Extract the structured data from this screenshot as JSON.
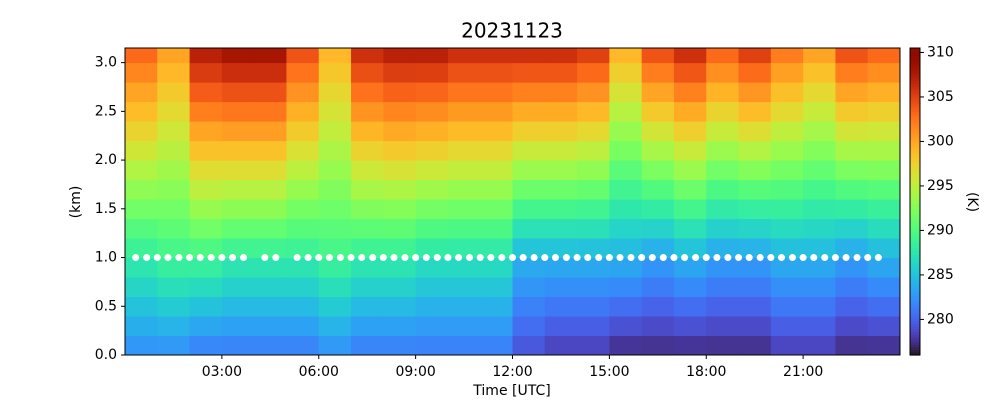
{
  "chart_data": {
    "type": "heatmap",
    "title": "20231123",
    "xlabel": "Time [UTC]",
    "ylabel": "(km)",
    "colorbar_label": "(K)",
    "colormap": "turbo",
    "xlim": [
      0,
      24
    ],
    "ylim": [
      0,
      3.15
    ],
    "zlim": [
      276,
      310.5
    ],
    "xticks": [
      {
        "value": 3,
        "label": "03:00"
      },
      {
        "value": 6,
        "label": "06:00"
      },
      {
        "value": 9,
        "label": "09:00"
      },
      {
        "value": 12,
        "label": "12:00"
      },
      {
        "value": 15,
        "label": "15:00"
      },
      {
        "value": 18,
        "label": "18:00"
      },
      {
        "value": 21,
        "label": "21:00"
      }
    ],
    "yticks": [
      {
        "value": 0,
        "label": "0.0"
      },
      {
        "value": 0.5,
        "label": "0.5"
      },
      {
        "value": 1,
        "label": "1.0"
      },
      {
        "value": 1.5,
        "label": "1.5"
      },
      {
        "value": 2,
        "label": "2.0"
      },
      {
        "value": 2.5,
        "label": "2.5"
      },
      {
        "value": 3,
        "label": "3.0"
      }
    ],
    "zticks": [
      280,
      285,
      290,
      295,
      300,
      305,
      310
    ],
    "xbins": [
      0,
      1,
      2,
      3,
      4,
      5,
      6,
      7,
      8,
      9,
      10,
      11,
      12,
      13,
      14,
      15,
      16,
      17,
      18,
      19,
      20,
      21,
      22,
      23,
      24
    ],
    "ybins": [
      0,
      0.2,
      0.4,
      0.6,
      0.8,
      1,
      1.2,
      1.4,
      1.6,
      1.8,
      2,
      2.2,
      2.4,
      2.6,
      2.8,
      3,
      3.2
    ],
    "values": [
      [
        282.6,
        283.8,
        285,
        286.2,
        287.4,
        288.7,
        290.1,
        291.6,
        293,
        294.4,
        295.9,
        297.3,
        298.7,
        300.1,
        301.6,
        303
      ],
      [
        282.7,
        284.1,
        285.5,
        286.9,
        288.3,
        289.5,
        290.6,
        291.6,
        292.7,
        293.7,
        294.8,
        295.8,
        296.9,
        297.9,
        299,
        300
      ],
      [
        281.8,
        283.4,
        285,
        286.6,
        288.2,
        289.9,
        291.6,
        293.3,
        295,
        296.7,
        298.4,
        300.1,
        301.9,
        303.6,
        305.3,
        307
      ],
      [
        281.7,
        283.1,
        284.5,
        285.9,
        287.3,
        289,
        290.9,
        292.8,
        294.7,
        296.6,
        298.5,
        300.4,
        302.3,
        304.2,
        306.1,
        308
      ],
      [
        281.7,
        283.1,
        284.5,
        285.9,
        287.3,
        289,
        290.9,
        292.8,
        294.7,
        296.6,
        298.5,
        300.4,
        302.3,
        304.2,
        306.1,
        308
      ],
      [
        281.7,
        283.1,
        284.5,
        285.9,
        287.3,
        288.8,
        290.3,
        291.8,
        293.3,
        294.9,
        296.4,
        297.9,
        299.4,
        301,
        302.5,
        304
      ],
      [
        282.7,
        284.1,
        285.5,
        286.9,
        288.3,
        289.5,
        290.4,
        291.4,
        292.3,
        293.3,
        294.2,
        295.2,
        296.1,
        297.1,
        298.1,
        299
      ],
      [
        281.7,
        283.1,
        284.5,
        285.9,
        287.3,
        288.9,
        290.6,
        292.3,
        294,
        295.7,
        297.4,
        299.1,
        300.9,
        302.6,
        304.3,
        306
      ],
      [
        281.7,
        283.1,
        284.5,
        285.9,
        287.3,
        288.9,
        290.7,
        292.5,
        294.3,
        296.2,
        298,
        299.8,
        301.6,
        303.4,
        305.2,
        307
      ],
      [
        281.6,
        282.8,
        284,
        285.2,
        286.4,
        288,
        289.9,
        291.8,
        293.7,
        295.6,
        297.5,
        299.4,
        301.3,
        303.2,
        305.1,
        307
      ],
      [
        281.6,
        282.8,
        284,
        285.2,
        286.4,
        287.9,
        289.7,
        291.5,
        293.3,
        295.2,
        297,
        298.8,
        300.6,
        302.4,
        304.2,
        306
      ],
      [
        281.6,
        282.8,
        284,
        285.2,
        286.4,
        287.9,
        289.7,
        291.5,
        293.3,
        295.2,
        297,
        298.8,
        300.6,
        302.4,
        304.2,
        306
      ],
      [
        279.5,
        280.5,
        281.5,
        282.5,
        283.5,
        285.1,
        287.1,
        289.2,
        291.3,
        293.4,
        295.5,
        297.6,
        299.7,
        301.8,
        303.9,
        306
      ],
      [
        278.6,
        279.8,
        281,
        282.2,
        283.4,
        285.1,
        287.1,
        289.2,
        291.3,
        293.4,
        295.5,
        297.6,
        299.7,
        301.8,
        303.9,
        306
      ],
      [
        278.6,
        279.8,
        281,
        282.2,
        283.4,
        285,
        287,
        289,
        291,
        293,
        295,
        297,
        299,
        301,
        303,
        305
      ],
      [
        277.7,
        279.1,
        280.5,
        281.9,
        283.3,
        284.7,
        286.1,
        287.6,
        289,
        290.4,
        291.9,
        293.3,
        294.7,
        296.1,
        297.6,
        299
      ],
      [
        277.6,
        278.8,
        280,
        281.2,
        282.4,
        284,
        286,
        288,
        290,
        292,
        294,
        296,
        298,
        300,
        302,
        304
      ],
      [
        277.7,
        279.1,
        280.5,
        281.9,
        283.3,
        285.1,
        287.1,
        289.2,
        291.3,
        293.4,
        295.5,
        297.6,
        299.7,
        301.8,
        303.9,
        306
      ],
      [
        277.6,
        278.8,
        280,
        281.2,
        282.4,
        284,
        285.9,
        287.8,
        289.7,
        291.6,
        293.5,
        295.4,
        297.3,
        299.2,
        301.1,
        303
      ],
      [
        277.6,
        278.8,
        280,
        281.2,
        282.4,
        284.1,
        286.1,
        288.2,
        290.3,
        292.4,
        294.5,
        296.6,
        298.7,
        300.8,
        302.9,
        305
      ],
      [
        278.6,
        279.8,
        281,
        282.2,
        283.4,
        284.9,
        286.6,
        288.3,
        290,
        291.7,
        293.4,
        295.1,
        296.9,
        298.6,
        300.3,
        302
      ],
      [
        278.6,
        279.8,
        281,
        282.2,
        283.4,
        284.8,
        286.3,
        287.8,
        289.3,
        290.9,
        292.4,
        293.9,
        295.4,
        297,
        298.5,
        300
      ],
      [
        277.6,
        278.8,
        280,
        281.2,
        282.4,
        284,
        286,
        288,
        290,
        292,
        294,
        296,
        298,
        300,
        302,
        304
      ],
      [
        277.7,
        279.1,
        280.5,
        281.9,
        283.3,
        284.9,
        286.7,
        288.5,
        290.3,
        292.2,
        294,
        295.8,
        297.6,
        299.4,
        301.2,
        303
      ]
    ],
    "markers": {
      "y": 1,
      "color": "#ffffff",
      "x": [
        0.33,
        0.67,
        1,
        1.33,
        1.67,
        2,
        2.33,
        2.67,
        3,
        3.33,
        3.67,
        4.33,
        4.67,
        5.33,
        5.67,
        6,
        6.33,
        6.67,
        7,
        7.33,
        7.67,
        8,
        8.33,
        8.67,
        9,
        9.33,
        9.67,
        10,
        10.33,
        10.67,
        11,
        11.33,
        11.67,
        12,
        12.33,
        12.67,
        13,
        13.33,
        13.67,
        14,
        14.33,
        14.67,
        15,
        15.33,
        15.67,
        16,
        16.33,
        16.67,
        17,
        17.33,
        17.67,
        18,
        18.33,
        18.67,
        19,
        19.33,
        19.67,
        20,
        20.33,
        20.67,
        21,
        21.33,
        21.67,
        22,
        22.33,
        22.67,
        23,
        23.33
      ]
    }
  }
}
